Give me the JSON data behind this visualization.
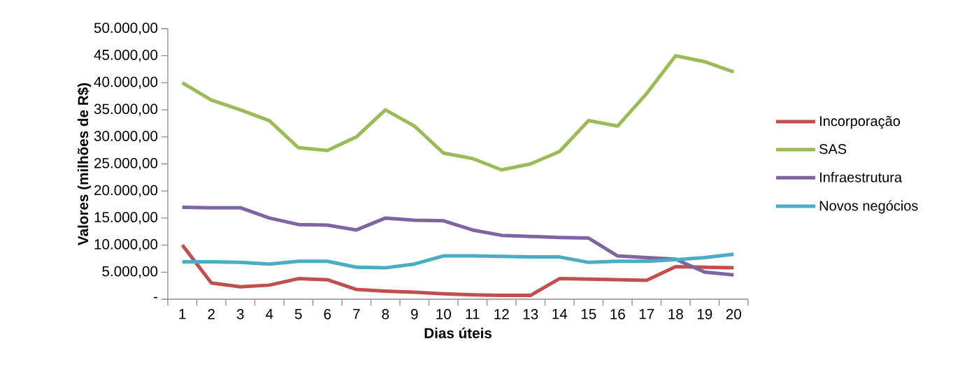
{
  "chart_data": {
    "type": "line",
    "xlabel": "Dias úteis",
    "ylabel": "Valores (milhões de R$)",
    "categories": [
      "1",
      "2",
      "3",
      "4",
      "5",
      "6",
      "7",
      "8",
      "9",
      "10",
      "11",
      "12",
      "13",
      "14",
      "15",
      "16",
      "17",
      "18",
      "19",
      "20"
    ],
    "ylim": [
      0,
      50000
    ],
    "yticks": [
      {
        "value": 0,
        "label": "-"
      },
      {
        "value": 5000,
        "label": "5.000,00"
      },
      {
        "value": 10000,
        "label": "10.000,00"
      },
      {
        "value": 15000,
        "label": "15.000,00"
      },
      {
        "value": 20000,
        "label": "20.000,00"
      },
      {
        "value": 25000,
        "label": "25.000,00"
      },
      {
        "value": 30000,
        "label": "30.000,00"
      },
      {
        "value": 35000,
        "label": "35.000,00"
      },
      {
        "value": 40000,
        "label": "40.000,00"
      },
      {
        "value": 45000,
        "label": "45.000,00"
      },
      {
        "value": 50000,
        "label": "50.000,00"
      }
    ],
    "legend": "right",
    "series": [
      {
        "name": "Incorporação",
        "color": "#c0504d",
        "values": [
          10000,
          3000,
          2300,
          2600,
          3800,
          3600,
          1800,
          1500,
          1300,
          1000,
          800,
          700,
          700,
          3800,
          3700,
          3600,
          3500,
          6000,
          5900,
          5800
        ]
      },
      {
        "name": "SAS",
        "color": "#9bbb59",
        "values": [
          40000,
          36800,
          35000,
          33000,
          28000,
          27500,
          30000,
          35000,
          32000,
          27000,
          26000,
          23900,
          25000,
          27300,
          33000,
          32000,
          38000,
          45000,
          43900,
          42000
        ]
      },
      {
        "name": "Infraestrutura",
        "color": "#8064a2",
        "values": [
          17000,
          16900,
          16900,
          15000,
          13800,
          13700,
          12800,
          15000,
          14600,
          14500,
          12800,
          11800,
          11600,
          11400,
          11300,
          8000,
          7700,
          7400,
          5000,
          4500
        ]
      },
      {
        "name": "Novos negócios",
        "color": "#4bacc6",
        "values": [
          6900,
          6900,
          6800,
          6500,
          7000,
          7000,
          5900,
          5800,
          6500,
          8000,
          8000,
          7900,
          7800,
          7800,
          6800,
          7000,
          7000,
          7300,
          7700,
          8300
        ]
      }
    ]
  }
}
